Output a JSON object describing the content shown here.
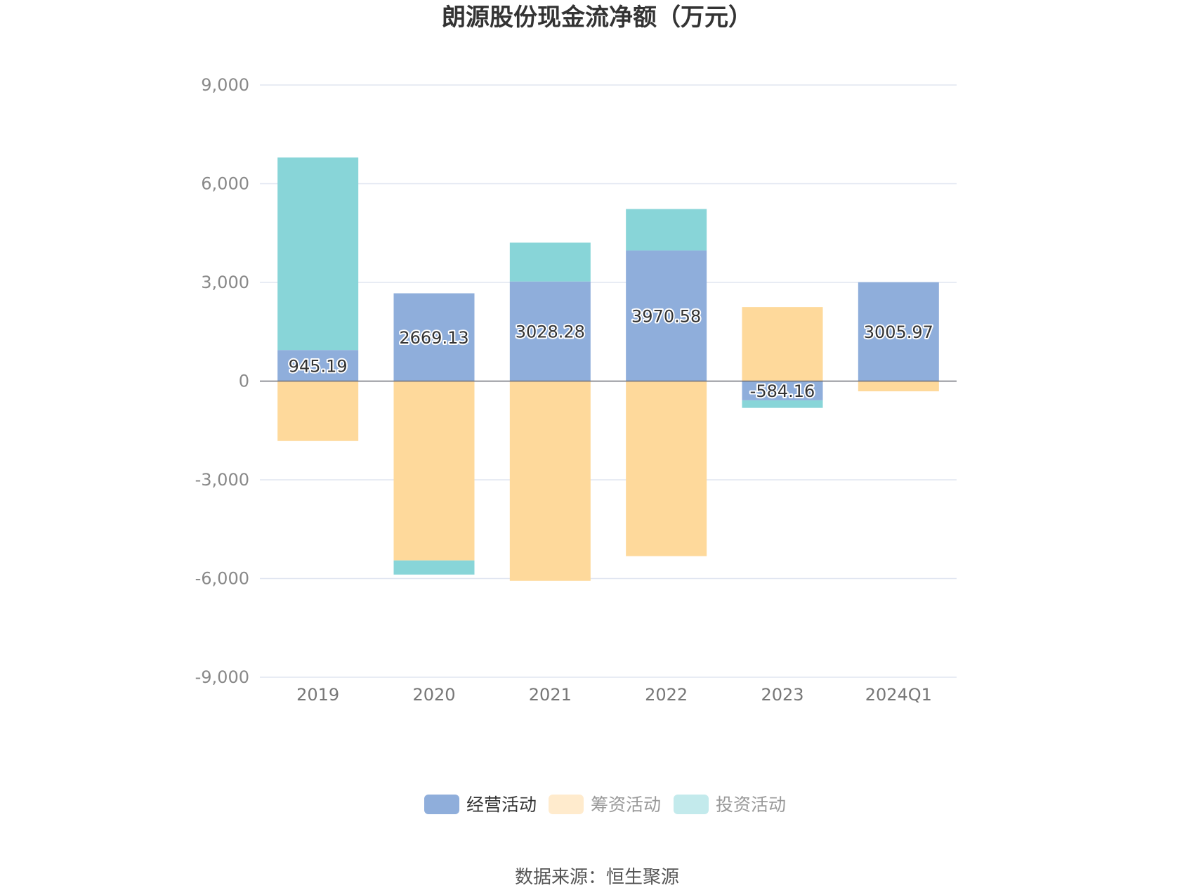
{
  "chart_data": {
    "type": "bar",
    "stacked": true,
    "title": "朗源股份现金流净额（万元）",
    "categories": [
      "2019",
      "2020",
      "2021",
      "2022",
      "2023",
      "2024Q1"
    ],
    "series": [
      {
        "name": "经营活动",
        "color": "#8FAEDB",
        "values": [
          945.19,
          2669.13,
          3028.28,
          3970.58,
          -584.16,
          3005.97
        ]
      },
      {
        "name": "筹资活动",
        "color": "#FED99B",
        "values": [
          -1820,
          -5450,
          -6070,
          -5320,
          2250,
          -310
        ]
      },
      {
        "name": "投资活动",
        "color": "#88D5D8",
        "values": [
          5850,
          -430,
          1180,
          1260,
          -230,
          0
        ]
      }
    ],
    "data_labels": [
      "945.19",
      "2669.13",
      "3028.28",
      "3970.58",
      "-584.16",
      "3005.97"
    ],
    "yticks": [
      9000,
      6000,
      3000,
      0,
      -3000,
      -6000,
      -9000
    ],
    "ytick_labels": [
      "9,000",
      "6,000",
      "3,000",
      "0",
      "-3,000",
      "-6,000",
      "-9,000"
    ],
    "ylim": [
      -9000,
      9000
    ],
    "grid": true,
    "legend_position": "bottom",
    "legend_inactive_colors": [
      "#8FAEDB",
      "#FFEBCD",
      "#C3EAEC"
    ],
    "legend_text_colors": [
      "#333333",
      "#999999",
      "#999999"
    ]
  },
  "source": "数据来源：恒生聚源"
}
